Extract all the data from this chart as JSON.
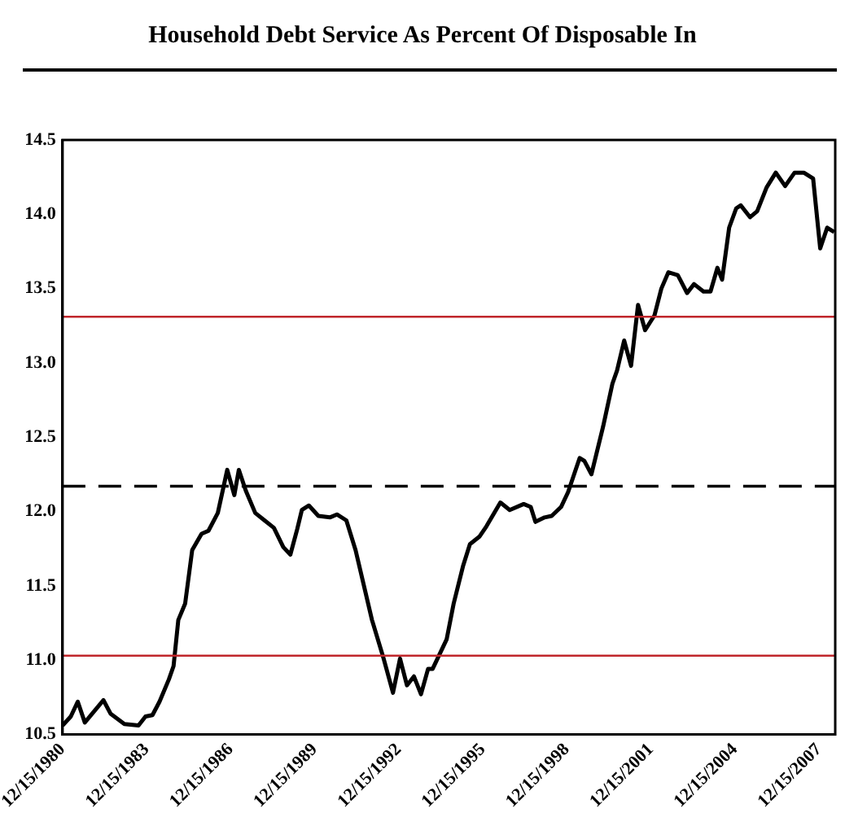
{
  "chart_data": {
    "type": "line",
    "title": "Household Debt Service As Percent Of Disposable In",
    "x": [
      "1980-12-15",
      "1981-04",
      "1981-07",
      "1981-10",
      "1982-06",
      "1982-09",
      "1983-03",
      "1983-09",
      "1983-12",
      "1984-03",
      "1984-06",
      "1984-10",
      "1984-12",
      "1985-02",
      "1985-05",
      "1985-08",
      "1985-12",
      "1986-03",
      "1986-07",
      "1986-11",
      "1987-02",
      "1987-04",
      "1987-07",
      "1987-11",
      "1988-03",
      "1988-07",
      "1988-11",
      "1989-02",
      "1989-05",
      "1989-07",
      "1989-10",
      "1990-02",
      "1990-07",
      "1990-10",
      "1991-02",
      "1991-06",
      "1992-01",
      "1992-06",
      "1992-10",
      "1993-01",
      "1993-04",
      "1993-07",
      "1993-10",
      "1994-01",
      "1994-03",
      "1994-09",
      "1994-12",
      "1995-04",
      "1995-07",
      "1995-11",
      "1996-02",
      "1996-08",
      "1996-12",
      "1997-06",
      "1997-09",
      "1997-11",
      "1998-03",
      "1998-06",
      "1998-10",
      "1999-01",
      "1999-06",
      "1999-08",
      "1999-11",
      "2000-04",
      "2000-08",
      "2000-10",
      "2001-01",
      "2001-04",
      "2001-07",
      "2001-10",
      "2002-02",
      "2002-05",
      "2002-08",
      "2002-12",
      "2003-01",
      "2003-04",
      "2003-07",
      "2003-11",
      "2004-02",
      "2004-05",
      "2004-07",
      "2004-10",
      "2005-01",
      "2005-03",
      "2005-07",
      "2005-10",
      "2006-02",
      "2006-06",
      "2006-10",
      "2007-02",
      "2007-06",
      "2007-10",
      "2008-01",
      "2008-04",
      "2008-07"
    ],
    "series": [
      {
        "color": "#000000",
        "values": [
          10.56,
          10.62,
          10.72,
          10.58,
          10.73,
          10.64,
          10.57,
          10.56,
          10.62,
          10.63,
          10.72,
          10.87,
          10.96,
          11.27,
          11.38,
          11.74,
          11.85,
          11.87,
          11.99,
          12.28,
          12.11,
          12.28,
          12.14,
          11.99,
          11.94,
          11.89,
          11.76,
          11.71,
          11.88,
          12.01,
          12.04,
          11.97,
          11.96,
          11.98,
          11.94,
          11.74,
          11.27,
          11.01,
          10.78,
          11.01,
          10.83,
          10.89,
          10.77,
          10.94,
          10.94,
          11.14,
          11.38,
          11.63,
          11.78,
          11.83,
          11.9,
          12.06,
          12.01,
          12.05,
          12.03,
          11.93,
          11.96,
          11.97,
          12.03,
          12.13,
          12.36,
          12.34,
          12.25,
          12.57,
          12.86,
          12.95,
          13.15,
          12.98,
          13.39,
          13.22,
          13.32,
          13.5,
          13.61,
          13.59,
          13.56,
          13.47,
          13.53,
          13.48,
          13.48,
          13.64,
          13.56,
          13.91,
          14.04,
          14.06,
          13.98,
          14.02,
          14.18,
          14.28,
          14.19,
          14.28,
          14.28,
          14.24,
          13.77,
          13.91,
          13.88
        ]
      }
    ],
    "xlim": [
      "1980-12-15",
      "2008-07-15"
    ],
    "xticks": [
      {
        "value": "1980-12-15",
        "label": "12/15/1980"
      },
      {
        "value": "1983-12-15",
        "label": "12/15/1983"
      },
      {
        "value": "1986-12-15",
        "label": "12/15/1986"
      },
      {
        "value": "1989-12-15",
        "label": "12/15/1989"
      },
      {
        "value": "1992-12-15",
        "label": "12/15/1992"
      },
      {
        "value": "1995-12-15",
        "label": "12/15/1995"
      },
      {
        "value": "1998-12-15",
        "label": "12/15/1998"
      },
      {
        "value": "2001-12-15",
        "label": "12/15/2001"
      },
      {
        "value": "2004-12-15",
        "label": "12/15/2004"
      },
      {
        "value": "2007-12-15",
        "label": "12/15/2007"
      }
    ],
    "ylim": [
      10.5,
      14.5
    ],
    "yticks": [
      10.5,
      {
        "value": 11,
        "label": "11.0"
      },
      11.5,
      {
        "value": 12,
        "label": "12.0"
      },
      12.5,
      {
        "value": 13,
        "label": "13.0"
      },
      13.5,
      {
        "value": 14,
        "label": "14.0"
      },
      14.5
    ],
    "ref_lines": [
      {
        "axis": "y",
        "value": 13.31,
        "color": "#c0262b",
        "line_style": "solid"
      },
      {
        "axis": "y",
        "value": 12.17,
        "color": "#000000",
        "line_style": "dashed"
      },
      {
        "axis": "y",
        "value": 11.03,
        "color": "#c0262b",
        "line_style": "solid"
      }
    ],
    "grid": false,
    "legend": false,
    "marker": "none",
    "line_style": "solid"
  }
}
